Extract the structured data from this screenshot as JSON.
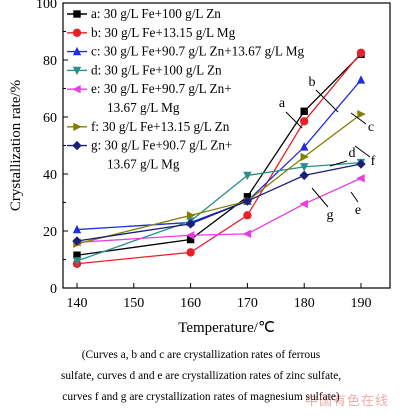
{
  "chart_data": {
    "type": "line",
    "xlabel": "Temperature/℃",
    "ylabel": "Crystallization rate/%",
    "xlim": [
      140,
      190
    ],
    "ylim": [
      0,
      100
    ],
    "xticks": [
      140,
      150,
      160,
      170,
      180,
      190
    ],
    "yticks": [
      0,
      20,
      40,
      60,
      80,
      100
    ],
    "x": [
      140,
      160,
      170,
      180,
      190
    ],
    "legend_position": "top-left",
    "grid": false,
    "series": [
      {
        "name": "a: 30 g/L Fe+100 g/L Zn",
        "label": "a",
        "color": "#000000",
        "marker": "square",
        "values": [
          11.5,
          17,
          32,
          62,
          82
        ]
      },
      {
        "name": "b: 30 g/L Fe+13.15 g/L Mg",
        "label": "b",
        "color": "#e8202a",
        "marker": "circle",
        "values": [
          8.5,
          12.5,
          25.5,
          58.5,
          82.5
        ]
      },
      {
        "name": "c: 30 g/L Fe+90.7 g/L Zn+13.67 g/L Mg",
        "label": "c",
        "color": "#1f2ee0",
        "marker": "triangle-up",
        "values": [
          20.5,
          23,
          30.5,
          49.5,
          73
        ]
      },
      {
        "name": "d: 30 g/L Fe+100 g/L Zn",
        "label": "d",
        "color": "#2a8f8a",
        "marker": "triangle-down",
        "values": [
          9.5,
          23.5,
          39.5,
          42.5,
          44
        ]
      },
      {
        "name": "e: 30 g/L Fe+90.7 g/L Zn+13.67 g/L Mg",
        "label": "e",
        "color": "#e83de0",
        "marker": "triangle-left",
        "values": [
          16,
          18.5,
          19,
          29.5,
          38.5
        ]
      },
      {
        "name": "f: 30 g/L Fe+13.15 g/L Zn",
        "label": "f",
        "color": "#808000",
        "marker": "triangle-right",
        "values": [
          15.5,
          25.5,
          30.5,
          46,
          61
        ]
      },
      {
        "name": "g: 30 g/L Fe+90.7 g/L Zn+13.67 g/L Mg",
        "label": "g",
        "color": "#1a1f78",
        "marker": "diamond",
        "values": [
          16.5,
          22.5,
          30.5,
          39.5,
          43.5
        ]
      }
    ]
  },
  "legend_lines": [
    {
      "series": 0,
      "lines": [
        "a: 30 g/L Fe+100 g/L Zn"
      ]
    },
    {
      "series": 1,
      "lines": [
        "b: 30 g/L Fe+13.15 g/L Mg"
      ]
    },
    {
      "series": 2,
      "lines": [
        "c: 30 g/L Fe+90.7 g/L Zn+13.67 g/L Mg"
      ]
    },
    {
      "series": 3,
      "lines": [
        "d: 30 g/L Fe+100 g/L Zn"
      ]
    },
    {
      "series": 4,
      "lines": [
        "e: 30 g/L Fe+90.7 g/L Zn+",
        "13.67 g/L Mg"
      ]
    },
    {
      "series": 5,
      "lines": [
        "f: 30 g/L Fe+13.15 g/L Zn"
      ]
    },
    {
      "series": 6,
      "lines": [
        "g: 30 g/L Fe+90.7 g/L Zn+",
        "13.67 g/L Mg"
      ]
    }
  ],
  "caption": {
    "line1": "(Curves a, b and c are crystallization rates of ferrous",
    "line2": "sulfate, curves d and e are crystallization rates of zinc sulfate,",
    "line3": "curves f and g are crystallization rates of magnesium sulfate)"
  },
  "watermark": "中国有色在线"
}
